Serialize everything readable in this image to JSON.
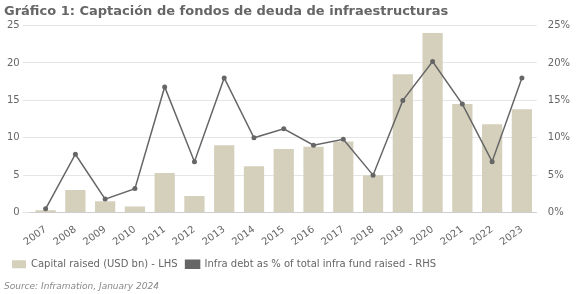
{
  "chart_data": {
    "type": "bar",
    "title": "Gráfico 1: Captación de fondos de deuda de infraestructuras",
    "annotations": [
      "Source: Inframation, January 2024"
    ],
    "categories": [
      "2007",
      "2008",
      "2009",
      "2010",
      "2011",
      "2012",
      "2013",
      "2014",
      "2015",
      "2016",
      "2017",
      "2018",
      "2019",
      "2020",
      "2021",
      "2022",
      "2023"
    ],
    "series": [
      {
        "name": "Capital raised (USD bn) - LHS",
        "type": "bar",
        "color": "#d4d0bc",
        "values": [
          0.3,
          3.0,
          1.5,
          0.8,
          5.3,
          2.2,
          9.0,
          6.2,
          8.5,
          8.8,
          9.5,
          5.0,
          18.5,
          24.0,
          14.5,
          11.8,
          13.8
        ]
      },
      {
        "name": "Infra debt as % of total infra fund raised - RHS",
        "type": "line",
        "axis": "y2",
        "color": "#666666",
        "marker": "circle",
        "values": [
          0.5,
          7.8,
          1.8,
          3.2,
          16.8,
          6.8,
          18.0,
          10.0,
          11.2,
          9.0,
          9.8,
          5.0,
          15.0,
          20.2,
          14.5,
          6.8,
          18.0
        ]
      }
    ],
    "ylim": [
      0,
      25
    ],
    "yticks": [
      0,
      5,
      10,
      15,
      20,
      25
    ],
    "y2lim": [
      0,
      25
    ],
    "y2ticks": [
      {
        "value": 0,
        "label": "0%"
      },
      {
        "value": 5,
        "label": "5%"
      },
      {
        "value": 10,
        "label": "10%"
      },
      {
        "value": 15,
        "label": "15%"
      },
      {
        "value": 20,
        "label": "20%"
      },
      {
        "value": 25,
        "label": "25%"
      }
    ],
    "grid": true,
    "legend": "bottom left"
  }
}
